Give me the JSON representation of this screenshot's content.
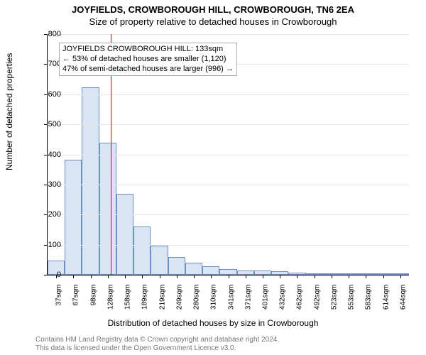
{
  "title": "JOYFIELDS, CROWBOROUGH HILL, CROWBOROUGH, TN6 2EA",
  "subtitle": "Size of property relative to detached houses in Crowborough",
  "ylabel": "Number of detached properties",
  "xlabel": "Distribution of detached houses by size in Crowborough",
  "footer_line1": "Contains HM Land Registry data © Crown copyright and database right 2024.",
  "footer_line2": "This data is licensed under the Open Government Licence v3.0.",
  "chart": {
    "type": "histogram",
    "ylim_max": 800,
    "ytick_step": 100,
    "background_color": "#ffffff",
    "grid_color": "#e5e5e5",
    "bar_fill_color": "#d9e4f5",
    "bar_border_color": "#6f8fc7",
    "reference_line_color": "#d00000",
    "reference_value": 133,
    "annotation": {
      "line1": "JOYFIELDS CROWBOROUGH HILL: 133sqm",
      "line2": "← 53% of detached houses are smaller (1,120)",
      "line3": "47% of semi-detached houses are larger (996) →"
    },
    "bins": [
      {
        "label": "37sqm",
        "value": 48
      },
      {
        "label": "67sqm",
        "value": 382
      },
      {
        "label": "98sqm",
        "value": 623
      },
      {
        "label": "128sqm",
        "value": 438
      },
      {
        "label": "158sqm",
        "value": 270
      },
      {
        "label": "189sqm",
        "value": 160
      },
      {
        "label": "219sqm",
        "value": 96
      },
      {
        "label": "249sqm",
        "value": 60
      },
      {
        "label": "280sqm",
        "value": 40
      },
      {
        "label": "310sqm",
        "value": 28
      },
      {
        "label": "341sqm",
        "value": 20
      },
      {
        "label": "371sqm",
        "value": 15
      },
      {
        "label": "401sqm",
        "value": 14
      },
      {
        "label": "432sqm",
        "value": 12
      },
      {
        "label": "462sqm",
        "value": 6
      },
      {
        "label": "492sqm",
        "value": 2
      },
      {
        "label": "523sqm",
        "value": 0
      },
      {
        "label": "553sqm",
        "value": 0
      },
      {
        "label": "583sqm",
        "value": 2
      },
      {
        "label": "614sqm",
        "value": 0
      },
      {
        "label": "644sqm",
        "value": 0
      }
    ]
  }
}
